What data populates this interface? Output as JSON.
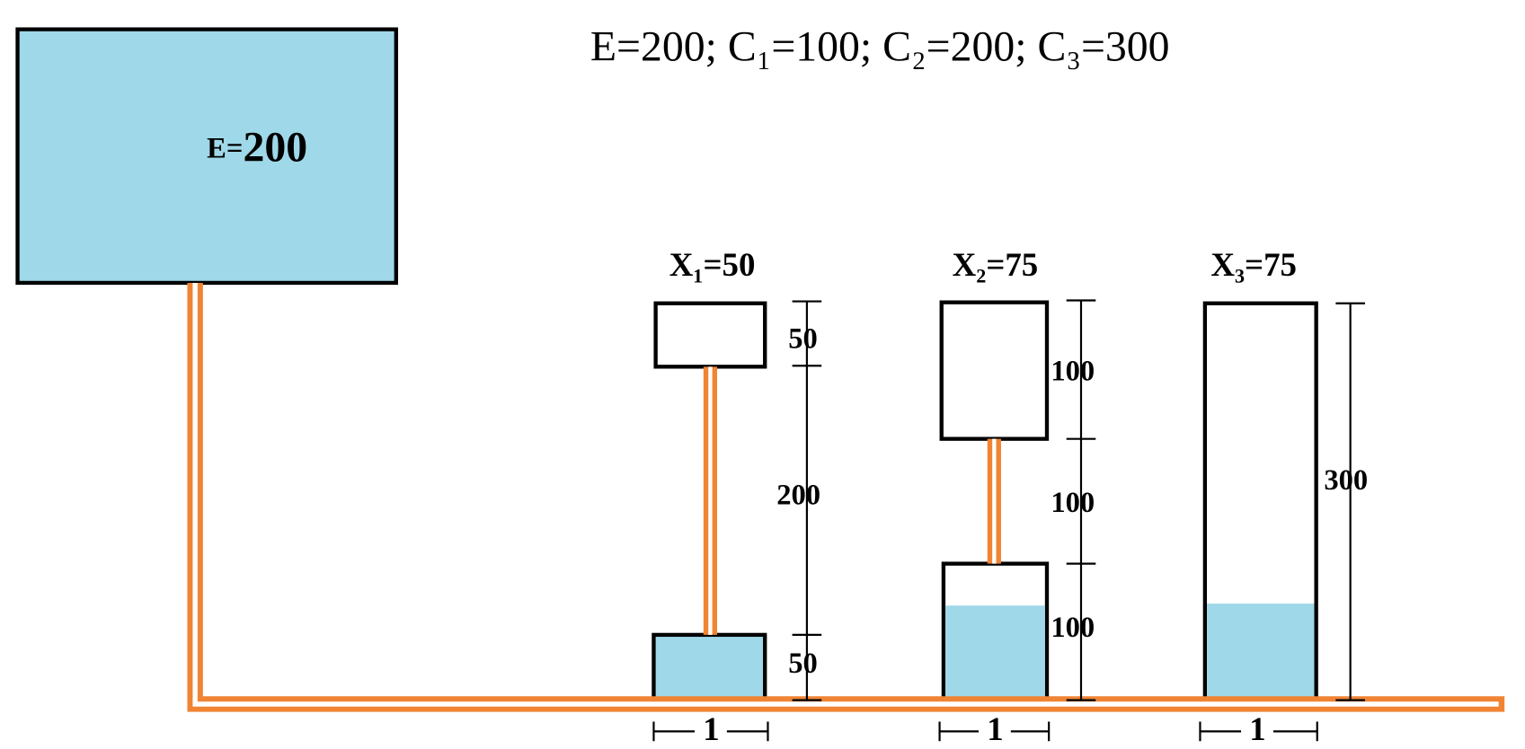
{
  "header": "E=200;  C₁=100; C₂=200; C₃=300",
  "tank": {
    "prefix": "E=",
    "value": "200"
  },
  "vessels": [
    {
      "label": "X₁=50",
      "dimensions": [
        "50",
        "200",
        "50"
      ],
      "width": "1"
    },
    {
      "label": "X₂=75",
      "dimensions": [
        "100",
        "100",
        "100"
      ],
      "width": "1"
    },
    {
      "label": "X₃=75",
      "dimensions": [
        "300"
      ],
      "width": "1"
    }
  ]
}
